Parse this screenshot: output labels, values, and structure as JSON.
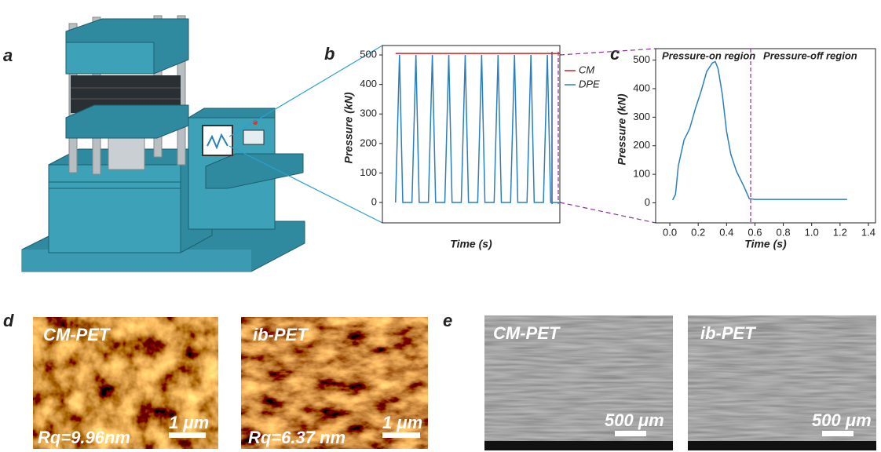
{
  "panel_labels": [
    "a",
    "b",
    "c",
    "d",
    "e"
  ],
  "chart_data": [
    {
      "type": "line",
      "xlabel": "Time (s)",
      "ylabel": "Pressure (kN)",
      "xlim": [
        -1,
        12.5
      ],
      "ylim": [
        -69,
        532
      ],
      "yticks": [
        0,
        100,
        200,
        300,
        400,
        500
      ],
      "legend": "right",
      "series": [
        {
          "name": "CM",
          "color": "#c0282a",
          "x": [
            0,
            12.5
          ],
          "values": [
            505,
            505
          ]
        },
        {
          "name": "DPE",
          "color": "#2a7fc0",
          "x": [
            0,
            0.3,
            0.55,
            1.25,
            1.55,
            1.8,
            2.5,
            2.8,
            3.05,
            3.75,
            4.05,
            4.3,
            5,
            5.3,
            5.55,
            6.25,
            6.55,
            6.8,
            7.5,
            7.8,
            8.05,
            8.75,
            9.05,
            9.3,
            10,
            10.3,
            10.55,
            11.25,
            11.55,
            11.8,
            12.5
          ],
          "values": [
            0,
            500,
            0,
            0,
            500,
            0,
            0,
            500,
            0,
            0,
            500,
            0,
            0,
            500,
            0,
            0,
            500,
            0,
            0,
            500,
            0,
            0,
            500,
            0,
            0,
            500,
            0,
            0,
            500,
            0,
            0
          ]
        }
      ]
    },
    {
      "type": "line",
      "xlabel": "Time (s)",
      "ylabel": "Pressure (kN)",
      "xlim": [
        -0.1,
        1.45
      ],
      "ylim": [
        -70,
        540
      ],
      "xticks": [
        {
          "value": 0,
          "label": "0.0"
        },
        0.2,
        0.4,
        0.6,
        0.8,
        {
          "value": 1,
          "label": "1.0"
        },
        1.2,
        1.4
      ],
      "yticks": [
        0,
        100,
        200,
        300,
        400,
        500
      ],
      "annotations": [
        "Pressure-on region",
        "Pressure-off region"
      ],
      "vlines": [
        0.57
      ],
      "series": [
        {
          "name": "DPE",
          "color": "#2a7fc0",
          "x": [
            0.02,
            0.04,
            0.06,
            0.1,
            0.14,
            0.18,
            0.22,
            0.26,
            0.3,
            0.32,
            0.34,
            0.37,
            0.4,
            0.43,
            0.47,
            0.52,
            0.56,
            0.6,
            1.25
          ],
          "values": [
            10,
            30,
            130,
            220,
            260,
            330,
            390,
            460,
            490,
            495,
            470,
            380,
            250,
            170,
            110,
            60,
            15,
            12,
            12
          ]
        }
      ]
    }
  ],
  "afm": [
    {
      "label": "CM-PET",
      "roughness": "Rq=9.96nm",
      "scale_bar": "1 μm"
    },
    {
      "label": "ib-PET",
      "roughness": "Rq=6.37 nm",
      "scale_bar": "1 μm"
    }
  ],
  "sem": [
    {
      "label": "CM-PET",
      "scale_bar": "500 μm"
    },
    {
      "label": "ib-PET",
      "scale_bar": "500 μm"
    }
  ]
}
